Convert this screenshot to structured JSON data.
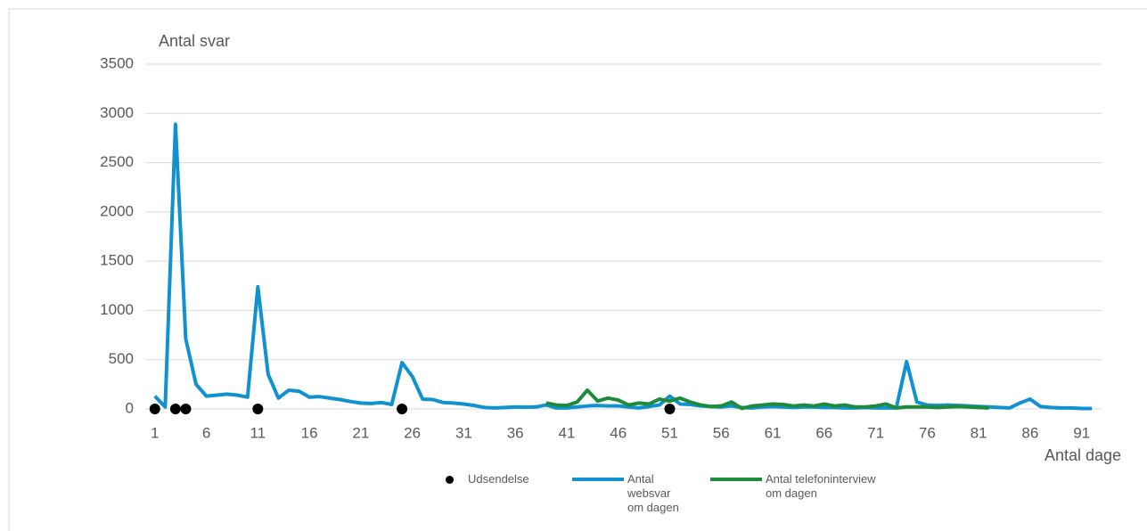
{
  "chart_data": {
    "type": "line",
    "y_label": "Antal svar",
    "x_label": "Antal dage",
    "x": [
      1,
      2,
      3,
      4,
      5,
      6,
      7,
      8,
      9,
      10,
      11,
      12,
      13,
      14,
      15,
      16,
      17,
      18,
      19,
      20,
      21,
      22,
      23,
      24,
      25,
      26,
      27,
      28,
      29,
      30,
      31,
      32,
      33,
      34,
      35,
      36,
      37,
      38,
      39,
      40,
      41,
      42,
      43,
      44,
      45,
      46,
      47,
      48,
      49,
      50,
      51,
      52,
      53,
      54,
      55,
      56,
      57,
      58,
      59,
      60,
      61,
      62,
      63,
      64,
      65,
      66,
      67,
      68,
      69,
      70,
      71,
      72,
      73,
      74,
      75,
      76,
      77,
      78,
      79,
      80,
      81,
      82,
      83,
      84,
      85,
      86,
      87,
      88,
      89,
      90,
      91,
      92
    ],
    "xlim": [
      0.5,
      92.5
    ],
    "xticks": [
      1,
      6,
      11,
      16,
      21,
      26,
      31,
      36,
      41,
      46,
      51,
      56,
      61,
      66,
      71,
      76,
      81,
      86,
      91
    ],
    "ylim": [
      0,
      3500
    ],
    "yticks": [
      0,
      500,
      1000,
      1500,
      2000,
      2500,
      3000,
      3500
    ],
    "grid": true,
    "series": [
      {
        "name": "Udsendelse",
        "color": "#000000",
        "marker": "dot",
        "values": [
          0,
          null,
          0,
          0,
          null,
          null,
          null,
          null,
          null,
          null,
          0,
          null,
          null,
          null,
          null,
          null,
          null,
          null,
          null,
          null,
          null,
          null,
          null,
          null,
          0,
          null,
          null,
          null,
          null,
          null,
          null,
          null,
          null,
          null,
          null,
          null,
          null,
          null,
          null,
          null,
          null,
          null,
          null,
          null,
          null,
          null,
          null,
          null,
          null,
          null,
          0,
          null,
          null,
          null,
          null,
          null,
          null,
          null,
          null,
          null,
          null,
          null,
          null,
          null,
          null,
          null,
          null,
          null,
          null,
          null,
          null,
          null,
          null,
          null,
          null,
          null,
          null,
          null,
          null,
          null,
          null,
          null,
          null,
          null,
          null,
          null,
          null,
          null,
          null,
          null,
          null,
          null
        ]
      },
      {
        "name": "Antal websvar om dagen",
        "color": "#1192d0",
        "marker": "line",
        "values": [
          130,
          20,
          2890,
          710,
          250,
          130,
          140,
          150,
          140,
          120,
          1240,
          350,
          110,
          190,
          180,
          120,
          125,
          110,
          95,
          75,
          60,
          55,
          65,
          45,
          470,
          330,
          100,
          95,
          65,
          60,
          50,
          35,
          15,
          10,
          15,
          20,
          18,
          20,
          40,
          10,
          10,
          20,
          30,
          35,
          30,
          30,
          20,
          10,
          25,
          40,
          130,
          50,
          45,
          30,
          25,
          20,
          30,
          15,
          10,
          20,
          25,
          20,
          15,
          20,
          20,
          15,
          15,
          10,
          10,
          15,
          10,
          10,
          10,
          480,
          70,
          40,
          35,
          40,
          35,
          30,
          25,
          20,
          15,
          10,
          60,
          100,
          25,
          15,
          10,
          10,
          5,
          5
        ]
      },
      {
        "name": "Antal telefoninterview om dagen",
        "color": "#1e8a3c",
        "marker": "line",
        "values": [
          null,
          null,
          null,
          null,
          null,
          null,
          null,
          null,
          null,
          null,
          null,
          null,
          null,
          null,
          null,
          null,
          null,
          null,
          null,
          null,
          null,
          null,
          null,
          null,
          null,
          null,
          null,
          null,
          null,
          null,
          null,
          null,
          null,
          null,
          null,
          null,
          null,
          null,
          60,
          40,
          35,
          70,
          190,
          80,
          110,
          90,
          40,
          60,
          50,
          100,
          80,
          110,
          70,
          40,
          25,
          30,
          70,
          5,
          30,
          40,
          50,
          45,
          30,
          40,
          30,
          50,
          30,
          40,
          20,
          20,
          30,
          50,
          10,
          20,
          20,
          20,
          15,
          20,
          25,
          20,
          15,
          10,
          null,
          null,
          null,
          null,
          null,
          null,
          null,
          null,
          null,
          null
        ]
      }
    ]
  }
}
